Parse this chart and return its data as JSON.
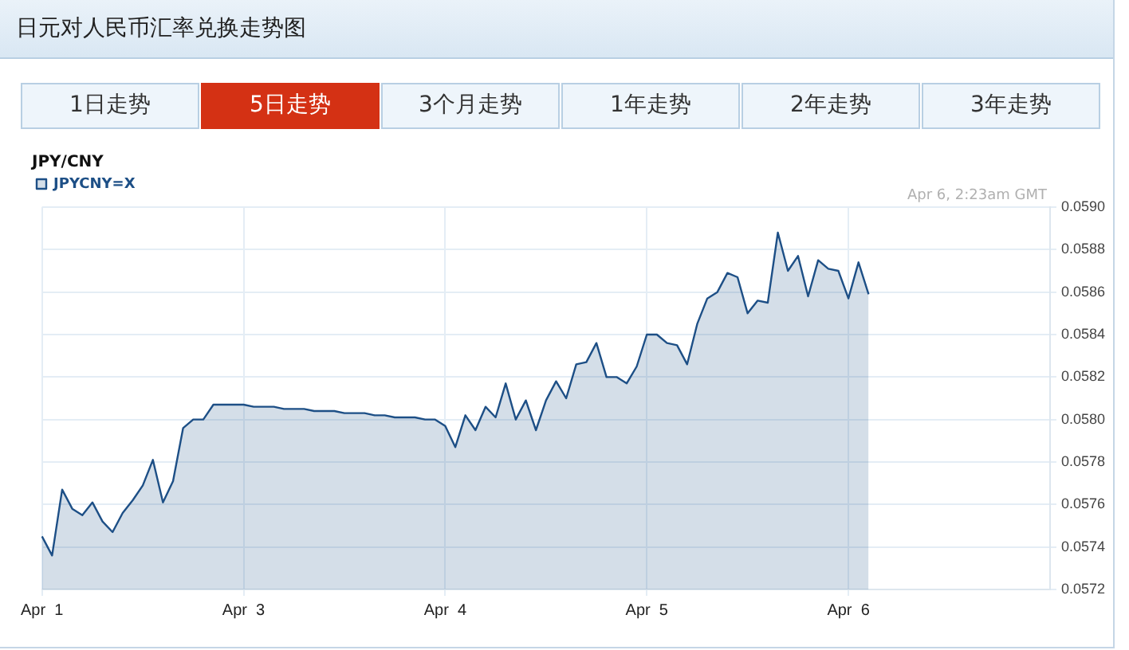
{
  "chart_data": {
    "type": "area",
    "title": "日元对人民币汇率兑换走势图",
    "subtitle": "JPY/CNY",
    "annotations": [
      "1日走势",
      "5日走势",
      "3个月走势",
      "1年走势",
      "2年走势",
      "3年走势",
      "Apr 6, 2:23am GMT"
    ],
    "categories": [
      "Apr  1",
      null,
      null,
      null,
      null,
      null,
      null,
      null,
      null,
      null,
      null,
      null,
      null,
      null,
      null,
      null,
      null,
      null,
      null,
      null,
      "Apr  3",
      null,
      null,
      null,
      null,
      null,
      null,
      null,
      null,
      null,
      null,
      null,
      null,
      null,
      null,
      null,
      null,
      null,
      null,
      null,
      "Apr  4",
      null,
      null,
      null,
      null,
      null,
      null,
      null,
      null,
      null,
      null,
      null,
      null,
      null,
      null,
      null,
      null,
      null,
      null,
      null,
      "Apr  5",
      null,
      null,
      null,
      null,
      null,
      null,
      null,
      null,
      null,
      null,
      null,
      null,
      null,
      null,
      null,
      null,
      null,
      null,
      null,
      "Apr  6",
      null,
      null,
      null,
      null,
      null,
      null,
      null,
      null,
      null,
      null,
      null,
      null,
      null,
      null,
      null,
      null,
      null,
      null,
      null,
      null
    ],
    "series": [
      {
        "name": "JPYCNY=X",
        "color": "#1d4f86",
        "values": [
          0.05745,
          0.05736,
          0.05767,
          0.05758,
          0.05755,
          0.05761,
          0.05752,
          0.05747,
          0.05756,
          0.05762,
          0.05769,
          0.05781,
          0.05761,
          0.05771,
          0.05796,
          0.058,
          0.058,
          0.05807,
          0.05807,
          0.05807,
          0.05807,
          0.05806,
          0.05806,
          0.05806,
          0.05805,
          0.05805,
          0.05805,
          0.05804,
          0.05804,
          0.05804,
          0.05803,
          0.05803,
          0.05803,
          0.05802,
          0.05802,
          0.05801,
          0.05801,
          0.05801,
          0.058,
          0.058,
          0.05797,
          0.05787,
          0.05802,
          0.05795,
          0.05806,
          0.05801,
          0.05817,
          0.058,
          0.05809,
          0.05795,
          0.05809,
          0.05818,
          0.0581,
          0.05826,
          0.05827,
          0.05836,
          0.0582,
          0.0582,
          0.05817,
          0.05825,
          0.0584,
          0.0584,
          0.05836,
          0.05835,
          0.05826,
          0.05845,
          0.05857,
          0.0586,
          0.05869,
          0.05867,
          0.0585,
          0.05856,
          0.05855,
          0.05888,
          0.0587,
          0.05877,
          0.05858,
          0.05875,
          0.05871,
          0.0587,
          0.05857,
          0.05874,
          0.05859,
          null,
          null,
          null,
          null,
          null,
          null,
          null,
          null,
          null,
          null,
          null,
          null,
          null,
          null,
          null,
          null,
          null,
          null
        ]
      }
    ],
    "ylim": [
      0.0572,
      0.059
    ],
    "yticks": [
      {
        "value": 0.0572,
        "label": "0.0572"
      },
      {
        "value": 0.0574,
        "label": "0.0574"
      },
      {
        "value": 0.0576,
        "label": "0.0576"
      },
      {
        "value": 0.0578,
        "label": "0.0578"
      },
      {
        "value": 0.058,
        "label": "0.0580"
      },
      {
        "value": 0.0582,
        "label": "0.0582"
      },
      {
        "value": 0.0584,
        "label": "0.0584"
      },
      {
        "value": 0.0586,
        "label": "0.0586"
      },
      {
        "value": 0.0588,
        "label": "0.0588"
      },
      {
        "value": 0.059,
        "label": "0.0590"
      }
    ],
    "grid": true,
    "legend": "top left",
    "marker": "none",
    "line_style": "solid"
  }
}
